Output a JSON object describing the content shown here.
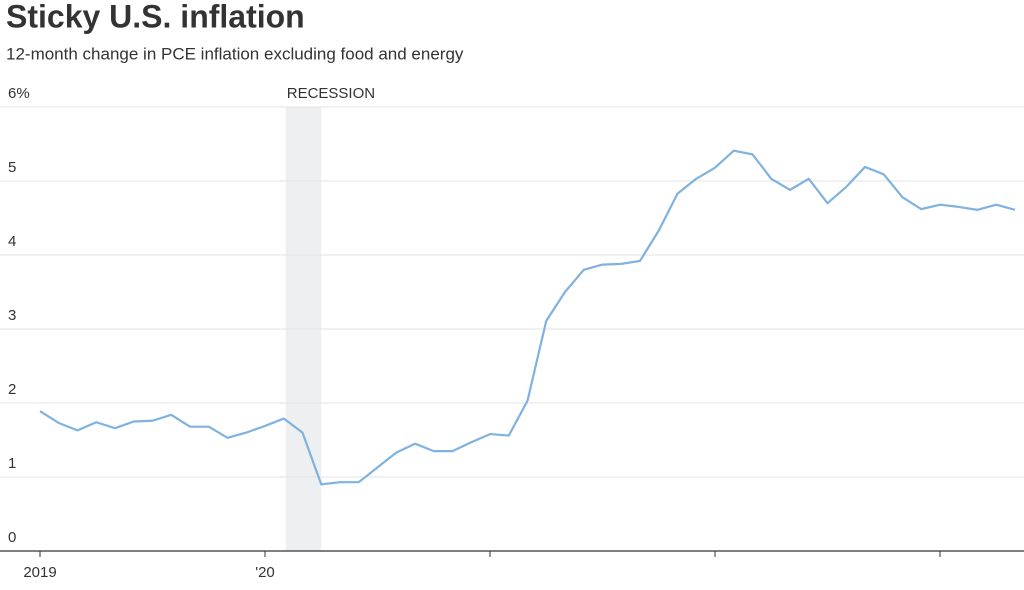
{
  "chart_data": {
    "type": "line",
    "title": "Sticky U.S. inflation",
    "subtitle": "12-month change in PCE inflation excluding food and energy",
    "x": [
      "2019-01",
      "2019-02",
      "2019-03",
      "2019-04",
      "2019-05",
      "2019-06",
      "2019-07",
      "2019-08",
      "2019-09",
      "2019-10",
      "2019-11",
      "2019-12",
      "2020-01",
      "2020-02",
      "2020-03",
      "2020-04",
      "2020-05",
      "2020-06",
      "2020-07",
      "2020-08",
      "2020-09",
      "2020-10",
      "2020-11",
      "2020-12",
      "2021-01",
      "2021-02",
      "2021-03",
      "2021-04",
      "2021-05",
      "2021-06",
      "2021-07",
      "2021-08",
      "2021-09",
      "2021-10",
      "2021-11",
      "2021-12",
      "2022-01",
      "2022-02",
      "2022-03",
      "2022-04",
      "2022-05",
      "2022-06",
      "2022-07",
      "2022-08",
      "2022-09",
      "2022-10",
      "2022-11",
      "2022-12",
      "2023-01",
      "2023-02",
      "2023-03",
      "2023-04",
      "2023-05"
    ],
    "values": [
      1.89,
      1.73,
      1.63,
      1.74,
      1.66,
      1.75,
      1.76,
      1.84,
      1.68,
      1.68,
      1.53,
      1.6,
      1.69,
      1.79,
      1.6,
      0.9,
      0.93,
      0.93,
      1.13,
      1.33,
      1.45,
      1.35,
      1.35,
      1.47,
      1.58,
      1.56,
      2.03,
      3.11,
      3.5,
      3.8,
      3.87,
      3.88,
      3.92,
      4.33,
      4.83,
      5.03,
      5.18,
      5.41,
      5.36,
      5.03,
      4.88,
      5.03,
      4.7,
      4.92,
      5.19,
      5.09,
      4.78,
      4.62,
      4.68,
      4.65,
      4.61,
      4.68,
      4.61
    ],
    "color": "#7fb2e0",
    "xticks": [
      {
        "value": "2019-01",
        "label": "2019"
      },
      {
        "value": "2020-01",
        "label": "'20"
      },
      {
        "value": "2021-01",
        "label": null
      },
      {
        "value": "2022-01",
        "label": null
      },
      {
        "value": "2023-01",
        "label": null
      }
    ],
    "ylim": [
      0,
      6
    ],
    "yticks": [
      0,
      1,
      2,
      3,
      4,
      5,
      {
        "value": 6,
        "label": "6%"
      }
    ],
    "grid": true,
    "recession": {
      "label": "RECESSION",
      "start": "2020-02",
      "end": "2020-04"
    }
  }
}
